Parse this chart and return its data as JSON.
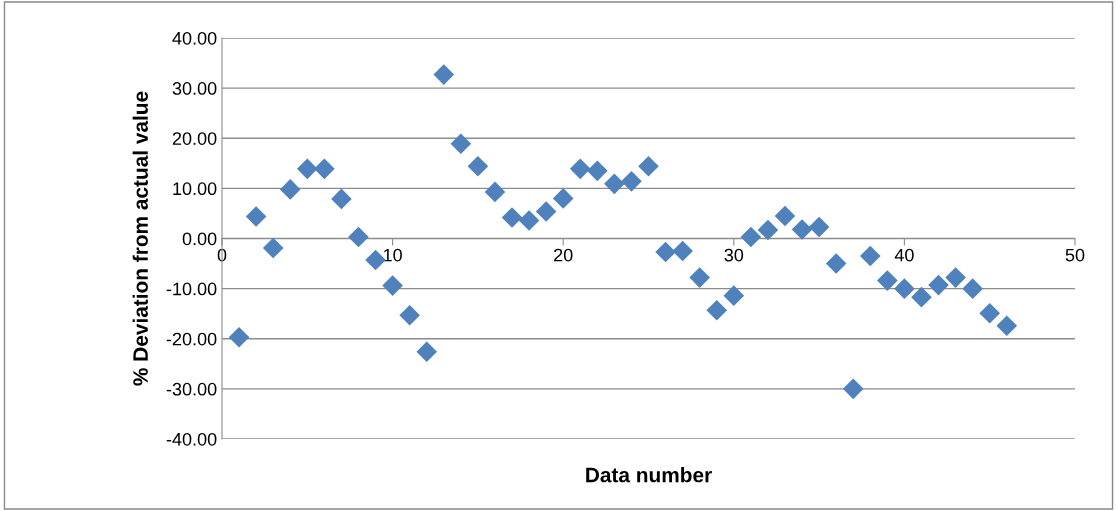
{
  "chart_data": {
    "type": "scatter",
    "xlabel": "Data number",
    "ylabel": "% Deviation from actual value",
    "x": [
      1,
      2,
      3,
      4,
      5,
      6,
      7,
      8,
      9,
      10,
      11,
      12,
      13,
      14,
      15,
      16,
      17,
      18,
      19,
      20,
      21,
      22,
      23,
      24,
      25,
      26,
      27,
      28,
      29,
      30,
      31,
      32,
      33,
      34,
      35,
      36,
      37,
      38,
      39,
      40,
      41,
      42,
      43,
      44,
      45,
      46
    ],
    "series": [
      {
        "color": "#4f81bd",
        "values": [
          -19.7,
          4.4,
          -1.9,
          9.8,
          13.9,
          13.9,
          7.9,
          0.3,
          -4.3,
          -9.4,
          -15.3,
          -22.6,
          32.7,
          18.9,
          14.4,
          9.3,
          4.2,
          3.6,
          5.4,
          8.0,
          13.9,
          13.5,
          10.9,
          11.4,
          14.4,
          -2.7,
          -2.5,
          -7.8,
          -14.3,
          -11.4,
          0.3,
          1.7,
          4.5,
          1.8,
          2.3,
          -5.0,
          -30.0,
          -3.5,
          -8.4,
          -10.0,
          -11.7,
          -9.3,
          -7.8,
          -10.0,
          -14.9,
          -17.4
        ]
      }
    ],
    "xlim": [
      0,
      50
    ],
    "xticks": [
      0,
      10,
      20,
      30,
      40,
      50
    ],
    "ylim": [
      -40,
      40
    ],
    "yticks": [
      {
        "value": -40,
        "label": "-40.00"
      },
      {
        "value": -30,
        "label": "-30.00"
      },
      {
        "value": -20,
        "label": "-20.00"
      },
      {
        "value": -10,
        "label": "-10.00"
      },
      {
        "value": 0,
        "label": "0.00"
      },
      {
        "value": 10,
        "label": "10.00"
      },
      {
        "value": 20,
        "label": "20.00"
      },
      {
        "value": 30,
        "label": "30.00"
      },
      {
        "value": 40,
        "label": "40.00"
      }
    ],
    "grid": "y",
    "marker": "diamond",
    "legend": false
  }
}
